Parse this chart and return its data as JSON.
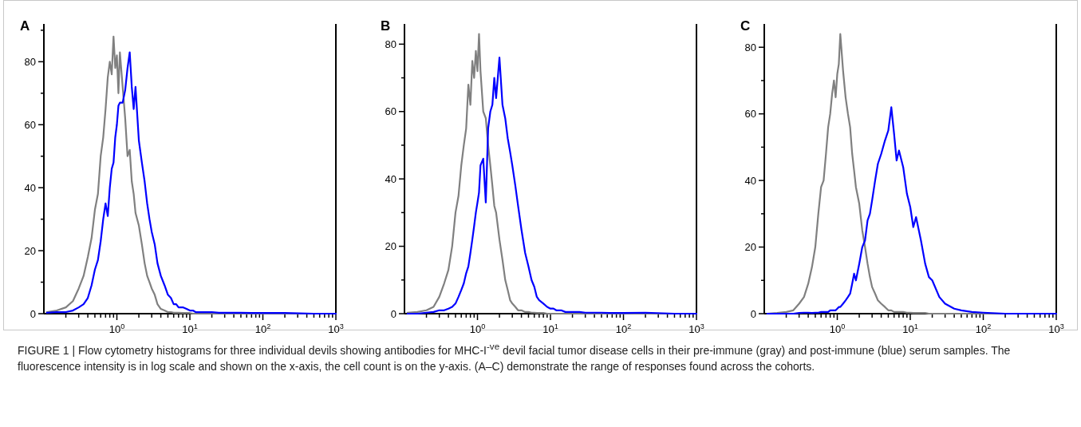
{
  "chart_data": [
    {
      "type": "line",
      "title": "A",
      "xlim": [
        0.1,
        1000
      ],
      "log": "x",
      "ylim": [
        0,
        92
      ],
      "xticks": [
        {
          "value": 0.2,
          "label": null
        },
        {
          "value": 0.3,
          "label": null
        },
        {
          "value": 0.4,
          "label": null
        },
        {
          "value": 0.5,
          "label": null
        },
        {
          "value": 0.6,
          "label": null
        },
        {
          "value": 0.7,
          "label": null
        },
        {
          "value": 0.8,
          "label": null
        },
        {
          "value": 0.9,
          "label": null
        },
        {
          "value": 1,
          "label": "10$^{0}$"
        },
        {
          "value": 2,
          "label": null
        },
        {
          "value": 3,
          "label": null
        },
        {
          "value": 4,
          "label": null
        },
        {
          "value": 5,
          "label": null
        },
        {
          "value": 6,
          "label": null
        },
        {
          "value": 7,
          "label": null
        },
        {
          "value": 8,
          "label": null
        },
        {
          "value": 9,
          "label": null
        },
        {
          "value": 10,
          "label": "10$^{1}$"
        },
        {
          "value": 20,
          "label": null
        },
        {
          "value": 30,
          "label": null
        },
        {
          "value": 40,
          "label": null
        },
        {
          "value": 50,
          "label": null
        },
        {
          "value": 60,
          "label": null
        },
        {
          "value": 70,
          "label": null
        },
        {
          "value": 80,
          "label": null
        },
        {
          "value": 90,
          "label": null
        },
        {
          "value": 100,
          "label": "10$^{2}$"
        },
        {
          "value": 200,
          "label": null
        },
        {
          "value": 300,
          "label": null
        },
        {
          "value": 400,
          "label": null
        },
        {
          "value": 500,
          "label": null
        },
        {
          "value": 600,
          "label": null
        },
        {
          "value": 700,
          "label": null
        },
        {
          "value": 800,
          "label": null
        },
        {
          "value": 900,
          "label": null
        },
        {
          "value": 1000,
          "label": "10$^{3}$"
        }
      ],
      "yticks": [
        0,
        {
          "value": 10,
          "label": null
        },
        20,
        {
          "value": 30,
          "label": null
        },
        40,
        {
          "value": 50,
          "label": null
        },
        60,
        {
          "value": 70,
          "label": null
        },
        80,
        {
          "value": 90,
          "label": null
        }
      ],
      "x": [
        0.11,
        0.15,
        0.2,
        0.25,
        0.3,
        0.35,
        0.4,
        0.45,
        0.5,
        0.55,
        0.6,
        0.65,
        0.7,
        0.75,
        0.8,
        0.85,
        0.9,
        0.95,
        1.0,
        1.05,
        1.1,
        1.2,
        1.3,
        1.4,
        1.5,
        1.6,
        1.7,
        1.8,
        2.0,
        2.2,
        2.4,
        2.6,
        2.8,
        3.0,
        3.3,
        3.6,
        4.0,
        4.5,
        5.0,
        5.5,
        6,
        6.5,
        7,
        8,
        9,
        10,
        11,
        12,
        14,
        16,
        18,
        20,
        25,
        30,
        40,
        50,
        70,
        100,
        200,
        500,
        1000
      ],
      "series": [
        {
          "color": "#808080",
          "values": [
            0.5,
            1,
            2,
            4,
            8,
            12,
            18,
            24,
            33,
            38,
            50,
            56,
            65,
            75,
            80,
            76,
            88,
            78,
            82,
            70,
            83,
            72,
            62,
            50,
            52,
            42,
            38,
            32,
            28,
            22,
            16,
            12,
            10,
            8,
            6,
            3,
            1.5,
            1,
            0.5,
            0.5,
            0.3,
            0.3,
            0.3,
            0.2,
            0.2,
            0.2,
            0,
            0,
            0,
            0,
            0,
            0,
            0,
            0,
            0,
            0,
            0,
            0,
            0,
            0,
            0
          ]
        },
        {
          "color": "#0000ff",
          "values": [
            0.3,
            0.5,
            0.5,
            1,
            2,
            3,
            5,
            9,
            14,
            17,
            23,
            30,
            35,
            31,
            40,
            46,
            48,
            56,
            60,
            66,
            67,
            67,
            71,
            78,
            83,
            72,
            65,
            72,
            55,
            48,
            42,
            35,
            30,
            26,
            22,
            16,
            12,
            9,
            6,
            5,
            3,
            3,
            2,
            2,
            1.5,
            1,
            1,
            0.5,
            0.5,
            0.5,
            0.5,
            0.5,
            0.3,
            0.3,
            0.3,
            0.3,
            0.2,
            0.2,
            0.2,
            0,
            0
          ]
        }
      ],
      "annotations": [
        "FIGURE 1 | Flow cytometry histograms for three individual devils showing antibodies for MHC-I$^{-ve}$ devil facial tumor disease cells in their pre-immune (gray) and post-immune (blue) serum samples. The fluorescence intensity is in log scale and shown on the x-axis, the cell count is on the y-axis. (A–C) demonstrate the range of responses found across the cohorts."
      ]
    },
    {
      "type": "line",
      "title": "B",
      "xlim": [
        0.1,
        1000
      ],
      "log": "x",
      "ylim": [
        0,
        86
      ],
      "xticks": [
        {
          "value": 0.2,
          "label": null
        },
        {
          "value": 0.3,
          "label": null
        },
        {
          "value": 0.4,
          "label": null
        },
        {
          "value": 0.5,
          "label": null
        },
        {
          "value": 0.6,
          "label": null
        },
        {
          "value": 0.7,
          "label": null
        },
        {
          "value": 0.8,
          "label": null
        },
        {
          "value": 0.9,
          "label": null
        },
        {
          "value": 1,
          "label": "10$^{0}$"
        },
        {
          "value": 2,
          "label": null
        },
        {
          "value": 3,
          "label": null
        },
        {
          "value": 4,
          "label": null
        },
        {
          "value": 5,
          "label": null
        },
        {
          "value": 6,
          "label": null
        },
        {
          "value": 7,
          "label": null
        },
        {
          "value": 8,
          "label": null
        },
        {
          "value": 9,
          "label": null
        },
        {
          "value": 10,
          "label": "10$^{1}$"
        },
        {
          "value": 20,
          "label": null
        },
        {
          "value": 30,
          "label": null
        },
        {
          "value": 40,
          "label": null
        },
        {
          "value": 50,
          "label": null
        },
        {
          "value": 60,
          "label": null
        },
        {
          "value": 70,
          "label": null
        },
        {
          "value": 80,
          "label": null
        },
        {
          "value": 90,
          "label": null
        },
        {
          "value": 100,
          "label": "10$^{2}$"
        },
        {
          "value": 200,
          "label": null
        },
        {
          "value": 300,
          "label": null
        },
        {
          "value": 400,
          "label": null
        },
        {
          "value": 500,
          "label": null
        },
        {
          "value": 600,
          "label": null
        },
        {
          "value": 700,
          "label": null
        },
        {
          "value": 800,
          "label": null
        },
        {
          "value": 900,
          "label": null
        },
        {
          "value": 1000,
          "label": "10$^{3}$"
        }
      ],
      "yticks": [
        0,
        {
          "value": 10,
          "label": null
        },
        20,
        {
          "value": 30,
          "label": null
        },
        40,
        {
          "value": 50,
          "label": null
        },
        60,
        {
          "value": 70,
          "label": null
        },
        80
      ],
      "x": [
        0.11,
        0.15,
        0.2,
        0.25,
        0.3,
        0.35,
        0.4,
        0.45,
        0.5,
        0.55,
        0.6,
        0.65,
        0.7,
        0.75,
        0.8,
        0.85,
        0.9,
        0.95,
        1.0,
        1.05,
        1.1,
        1.2,
        1.3,
        1.4,
        1.5,
        1.6,
        1.7,
        1.8,
        2.0,
        2.2,
        2.4,
        2.6,
        2.8,
        3.0,
        3.3,
        3.6,
        4.0,
        4.5,
        5.0,
        5.5,
        6,
        6.5,
        7,
        8,
        9,
        10,
        11,
        12,
        14,
        16,
        18,
        20,
        25,
        30,
        40,
        50,
        70,
        100,
        200,
        500,
        1000
      ],
      "series": [
        {
          "color": "#808080",
          "values": [
            0.3,
            0.5,
            1,
            2,
            5,
            9,
            13,
            20,
            30,
            35,
            44,
            50,
            55,
            68,
            62,
            75,
            70,
            78,
            72,
            83,
            72,
            60,
            58,
            50,
            44,
            38,
            32,
            30,
            22,
            16,
            10,
            7,
            4,
            3,
            2,
            1,
            1,
            0.5,
            0.5,
            0.3,
            0.3,
            0.2,
            0.2,
            0.2,
            0,
            0,
            0,
            0,
            0,
            0,
            0,
            0,
            0,
            0,
            0,
            0,
            0,
            0,
            0,
            0,
            0
          ]
        },
        {
          "color": "#0000ff",
          "values": [
            0,
            0,
            0.3,
            0.5,
            1,
            1,
            1.5,
            2,
            3,
            5,
            7,
            9,
            12,
            14,
            18,
            22,
            26,
            30,
            33,
            36,
            44,
            46,
            33,
            55,
            60,
            62,
            70,
            64,
            76,
            62,
            58,
            52,
            48,
            44,
            38,
            32,
            25,
            18,
            14,
            10,
            8,
            5,
            4,
            3,
            2,
            1.5,
            1.5,
            1,
            1,
            0.5,
            0.5,
            0.5,
            0.5,
            0.3,
            0.3,
            0.3,
            0.2,
            0.2,
            0.3,
            0,
            0
          ]
        }
      ]
    },
    {
      "type": "line",
      "title": "C",
      "xlim": [
        0.1,
        1000
      ],
      "log": "x",
      "ylim": [
        0,
        87
      ],
      "xticks": [
        {
          "value": 0.2,
          "label": null
        },
        {
          "value": 0.3,
          "label": null
        },
        {
          "value": 0.4,
          "label": null
        },
        {
          "value": 0.5,
          "label": null
        },
        {
          "value": 0.6,
          "label": null
        },
        {
          "value": 0.7,
          "label": null
        },
        {
          "value": 0.8,
          "label": null
        },
        {
          "value": 0.9,
          "label": null
        },
        {
          "value": 1,
          "label": "10$^{0}$"
        },
        {
          "value": 2,
          "label": null
        },
        {
          "value": 3,
          "label": null
        },
        {
          "value": 4,
          "label": null
        },
        {
          "value": 5,
          "label": null
        },
        {
          "value": 6,
          "label": null
        },
        {
          "value": 7,
          "label": null
        },
        {
          "value": 8,
          "label": null
        },
        {
          "value": 9,
          "label": null
        },
        {
          "value": 10,
          "label": "10$^{1}$"
        },
        {
          "value": 20,
          "label": null
        },
        {
          "value": 30,
          "label": null
        },
        {
          "value": 40,
          "label": null
        },
        {
          "value": 50,
          "label": null
        },
        {
          "value": 60,
          "label": null
        },
        {
          "value": 70,
          "label": null
        },
        {
          "value": 80,
          "label": null
        },
        {
          "value": 90,
          "label": null
        },
        {
          "value": 100,
          "label": "10$^{2}$"
        },
        {
          "value": 200,
          "label": null
        },
        {
          "value": 300,
          "label": null
        },
        {
          "value": 400,
          "label": null
        },
        {
          "value": 500,
          "label": null
        },
        {
          "value": 600,
          "label": null
        },
        {
          "value": 700,
          "label": null
        },
        {
          "value": 800,
          "label": null
        },
        {
          "value": 900,
          "label": null
        },
        {
          "value": 1000,
          "label": "10$^{3}$"
        }
      ],
      "yticks": [
        0,
        {
          "value": 10,
          "label": null
        },
        20,
        {
          "value": 30,
          "label": null
        },
        40,
        {
          "value": 50,
          "label": null
        },
        60,
        {
          "value": 70,
          "label": null
        },
        80
      ],
      "x": [
        0.11,
        0.15,
        0.2,
        0.25,
        0.3,
        0.35,
        0.4,
        0.45,
        0.5,
        0.55,
        0.6,
        0.65,
        0.7,
        0.75,
        0.8,
        0.85,
        0.9,
        0.95,
        1.0,
        1.05,
        1.1,
        1.2,
        1.3,
        1.4,
        1.5,
        1.6,
        1.7,
        1.8,
        2.0,
        2.2,
        2.4,
        2.6,
        2.8,
        3.0,
        3.3,
        3.6,
        4.0,
        4.5,
        5.0,
        5.5,
        6,
        6.5,
        7,
        8,
        9,
        10,
        11,
        12,
        14,
        16,
        18,
        20,
        25,
        30,
        40,
        50,
        70,
        100,
        200,
        500,
        1000
      ],
      "series": [
        {
          "color": "#808080",
          "values": [
            0,
            0.2,
            0.5,
            1,
            3,
            5,
            9,
            14,
            20,
            30,
            38,
            40,
            48,
            56,
            60,
            66,
            70,
            65,
            72,
            75,
            84,
            73,
            65,
            60,
            56,
            48,
            43,
            38,
            33,
            25,
            20,
            15,
            11,
            8,
            6,
            4,
            3,
            2,
            1,
            1,
            0.5,
            0.5,
            0.5,
            0.5,
            0.3,
            0.3,
            0.2,
            0.2,
            0.2,
            0.2,
            0,
            0,
            0,
            0,
            0,
            0,
            0,
            0,
            0,
            0,
            0
          ]
        },
        {
          "color": "#0000ff",
          "values": [
            0,
            0,
            0,
            0,
            0.2,
            0.3,
            0.3,
            0.2,
            0.3,
            0.3,
            0.5,
            0.5,
            0.5,
            0.5,
            1,
            1,
            1,
            1,
            1.5,
            2,
            2,
            3,
            4,
            5,
            6,
            9,
            12,
            10,
            15,
            20,
            22,
            28,
            30,
            34,
            40,
            45,
            48,
            52,
            55,
            62,
            54,
            46,
            49,
            44,
            36,
            32,
            26,
            29,
            22,
            15,
            11,
            10,
            5,
            3,
            1.5,
            1,
            0.5,
            0.3,
            0,
            0,
            0
          ]
        }
      ]
    }
  ]
}
